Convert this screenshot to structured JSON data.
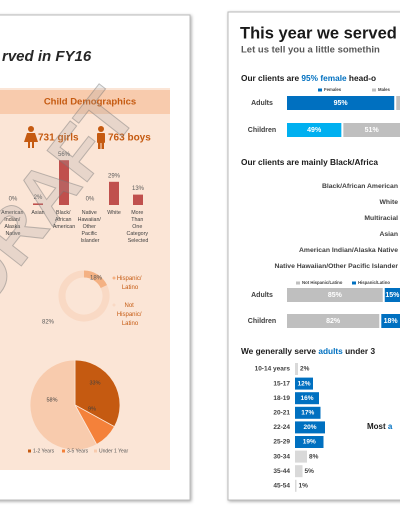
{
  "left_page": {
    "title": "rved in FY16",
    "watermark": "DRAFT",
    "panel_title": "Child Demographics",
    "girls": "731 girls",
    "boys": "763 boys",
    "race_chart": {
      "categories": [
        "American Indian/ Alaska Native",
        "Asian",
        "Black/ African American",
        "Native Hawaiian/ Other Pacific Islander",
        "White",
        "More Than One Category Selected"
      ],
      "values": [
        0,
        2,
        56,
        0,
        29,
        13
      ],
      "value_labels": [
        "0%",
        "2%",
        "56%",
        "0%",
        "29%",
        "13%"
      ],
      "color": "#c0504d"
    },
    "ethnicity_donut": {
      "categories": [
        "Hispanic/ Latino",
        "Not Hispanic/ Latino"
      ],
      "values": [
        18,
        82
      ],
      "value_labels": [
        "18%",
        "82%"
      ],
      "colors": [
        "#f4b183",
        "#f9d9c4"
      ]
    },
    "duration_pie": {
      "categories": [
        "1-2 Years",
        "3-5 Years",
        "Under 1 Year"
      ],
      "values": [
        33,
        9,
        58
      ],
      "value_labels": [
        "33%",
        "9%",
        "58%"
      ],
      "colors": [
        "#c55a11",
        "#f4813a",
        "#f8cbad"
      ]
    }
  },
  "right_page": {
    "title": "This year we served",
    "subtitle": "Let us tell you a little somethin",
    "gender_heading": {
      "before": "Our clients are ",
      "highlight": "95% female",
      "after": " head-o"
    },
    "gender_chart": {
      "categories": [
        "Adults",
        "Children"
      ],
      "series": [
        {
          "name": "Females",
          "color": "#0070c0",
          "colors": [
            "#0070c0",
            "#00b0f0"
          ],
          "values": [
            95,
            49
          ],
          "value_labels": [
            "95%",
            "49%"
          ]
        },
        {
          "name": "Males",
          "color": "#bfbfbf",
          "values": [
            5,
            51
          ],
          "value_labels": [
            null,
            "51%"
          ]
        }
      ]
    },
    "race_heading": "Our clients are mainly Black/Africa",
    "race_list": [
      "Black/African American",
      "White",
      "Multiracial",
      "Asian",
      "American Indian/Alaska Native",
      "Native Hawaiian/Other Pacific Islander"
    ],
    "ethnicity_chart": {
      "categories": [
        "Adults",
        "Children"
      ],
      "series": [
        {
          "name": "Not Hispanic/Latino",
          "color": "#bfbfbf",
          "values": [
            85,
            82
          ],
          "value_labels": [
            "85%",
            "82%"
          ]
        },
        {
          "name": "Hispanic/Latino",
          "color": "#0070c0",
          "values": [
            15,
            18
          ],
          "value_labels": [
            "15%",
            "18%"
          ]
        }
      ]
    },
    "age_heading": {
      "before": "We generally serve ",
      "highlight": "adults",
      "after": " under 3"
    },
    "age_chart": {
      "categories": [
        "10-14 years",
        "15-17",
        "18-19",
        "20-21",
        "22-24",
        "25-29",
        "30-34",
        "35-44",
        "45-54"
      ],
      "values": [
        2,
        12,
        16,
        17,
        20,
        19,
        8,
        5,
        1
      ],
      "value_labels": [
        "2%",
        "12%",
        "16%",
        "17%",
        "20%",
        "19%",
        "8%",
        "5%",
        "1%"
      ],
      "colors": [
        "#d9d9d9",
        "#0070c0",
        "#0070c0",
        "#0070c0",
        "#0070c0",
        "#0070c0",
        "#d9d9d9",
        "#d9d9d9",
        "#d9d9d9"
      ]
    },
    "note": {
      "before": "Most ",
      "highlight": "a"
    }
  }
}
